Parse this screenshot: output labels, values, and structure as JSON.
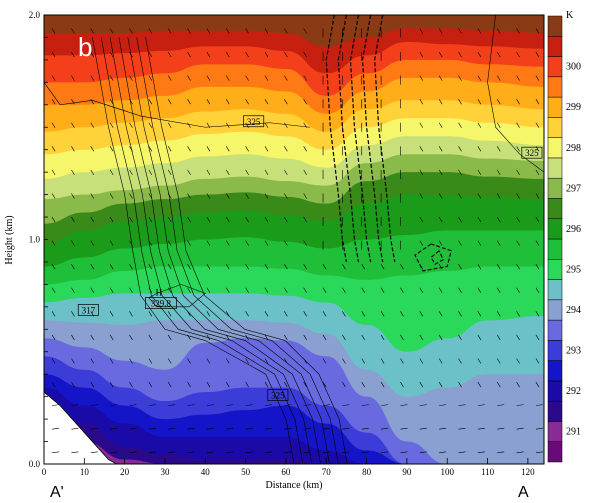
{
  "chart_data": {
    "type": "heatmap",
    "panel_label": "b",
    "xlabel": "Distance (km)",
    "ylabel": "Height (km)",
    "xlim": [
      0,
      124
    ],
    "ylim": [
      0,
      2.0
    ],
    "x_ticks": [
      0,
      10,
      20,
      30,
      40,
      50,
      60,
      70,
      80,
      90,
      100,
      110,
      120
    ],
    "y_ticks": [
      {
        "value": 0.0,
        "label": "0.0"
      },
      {
        "value": 1.0,
        "label": "1.0"
      },
      {
        "value": 2.0,
        "label": "2.0"
      }
    ],
    "section_start_label": "A'",
    "section_end_label": "A",
    "colorbar": {
      "unit": "K",
      "levels": [
        290.5,
        291,
        291.5,
        292,
        292.5,
        293,
        293.5,
        294,
        294.5,
        295,
        295.5,
        296,
        296.5,
        297,
        297.5,
        298,
        298.5,
        299,
        299.5,
        300,
        300.5,
        301
      ],
      "colors": [
        "#6a0a7a",
        "#8a2a96",
        "#2a0a8a",
        "#1a0aa8",
        "#1414c8",
        "#3c3cd8",
        "#6a6ae0",
        "#8aa0d0",
        "#6cc0c8",
        "#2ad85a",
        "#1fbf3a",
        "#1a9c1a",
        "#3a8a1a",
        "#8aba4a",
        "#c8e07a",
        "#f6f66a",
        "#ffd23a",
        "#ffae1a",
        "#ff7a14",
        "#f4401a",
        "#c82010",
        "#8a3a14"
      ],
      "labels": [
        "291",
        "292",
        "293",
        "294",
        "295",
        "296",
        "297",
        "298",
        "299",
        "300"
      ]
    },
    "bands": [
      {
        "theta": 301.0,
        "height_km": [
          1.92,
          1.92,
          1.92,
          1.93,
          1.93,
          1.93,
          1.92,
          1.86,
          1.9,
          1.94,
          1.94,
          1.93,
          1.92
        ]
      },
      {
        "theta": 300.5,
        "height_km": [
          1.82,
          1.82,
          1.83,
          1.84,
          1.86,
          1.86,
          1.84,
          1.74,
          1.82,
          1.88,
          1.87,
          1.86,
          1.85
        ]
      },
      {
        "theta": 300.0,
        "height_km": [
          1.7,
          1.7,
          1.72,
          1.74,
          1.78,
          1.78,
          1.76,
          1.64,
          1.74,
          1.8,
          1.8,
          1.78,
          1.77
        ]
      },
      {
        "theta": 299.5,
        "height_km": [
          1.6,
          1.6,
          1.62,
          1.64,
          1.68,
          1.68,
          1.66,
          1.56,
          1.66,
          1.72,
          1.72,
          1.7,
          1.68
        ]
      },
      {
        "theta": 299.0,
        "height_km": [
          1.48,
          1.5,
          1.52,
          1.54,
          1.57,
          1.58,
          1.56,
          1.48,
          1.58,
          1.62,
          1.62,
          1.6,
          1.58
        ]
      },
      {
        "theta": 298.5,
        "height_km": [
          1.38,
          1.4,
          1.42,
          1.44,
          1.47,
          1.48,
          1.46,
          1.4,
          1.5,
          1.54,
          1.54,
          1.52,
          1.5
        ]
      },
      {
        "theta": 298.0,
        "height_km": [
          1.27,
          1.3,
          1.32,
          1.34,
          1.37,
          1.38,
          1.36,
          1.32,
          1.42,
          1.46,
          1.46,
          1.44,
          1.42
        ]
      },
      {
        "theta": 297.5,
        "height_km": [
          1.18,
          1.2,
          1.22,
          1.24,
          1.27,
          1.28,
          1.26,
          1.24,
          1.34,
          1.38,
          1.38,
          1.36,
          1.35
        ]
      },
      {
        "theta": 297.0,
        "height_km": [
          1.07,
          1.12,
          1.16,
          1.18,
          1.2,
          1.21,
          1.19,
          1.16,
          1.26,
          1.3,
          1.3,
          1.28,
          1.27
        ]
      },
      {
        "theta": 296.5,
        "height_km": [
          0.98,
          1.04,
          1.08,
          1.1,
          1.12,
          1.13,
          1.11,
          1.08,
          1.16,
          1.2,
          1.2,
          1.19,
          1.18
        ]
      },
      {
        "theta": 296.0,
        "height_km": [
          0.88,
          0.92,
          0.96,
          0.98,
          1.0,
          1.01,
          0.99,
          0.96,
          1.0,
          1.02,
          1.04,
          1.04,
          1.04
        ]
      },
      {
        "theta": 295.5,
        "height_km": [
          0.8,
          0.82,
          0.86,
          0.88,
          0.88,
          0.88,
          0.87,
          0.84,
          0.82,
          0.84,
          0.86,
          0.88,
          0.88
        ]
      },
      {
        "theta": 295.0,
        "height_km": [
          0.72,
          0.74,
          0.76,
          0.76,
          0.76,
          0.76,
          0.75,
          0.72,
          0.62,
          0.5,
          0.56,
          0.64,
          0.66
        ]
      },
      {
        "theta": 294.5,
        "height_km": [
          0.64,
          0.63,
          0.62,
          0.64,
          0.64,
          0.64,
          0.63,
          0.58,
          0.42,
          0.3,
          0.34,
          0.4,
          0.4
        ]
      },
      {
        "theta": 294.0,
        "height_km": [
          0.56,
          0.52,
          0.46,
          0.42,
          0.54,
          0.56,
          0.55,
          0.48,
          0.3,
          0.1,
          0.0,
          0.0,
          0.0
        ]
      },
      {
        "theta": 293.5,
        "height_km": [
          0.48,
          0.42,
          0.34,
          0.28,
          0.32,
          0.34,
          0.34,
          0.26,
          0.14,
          0.0,
          0.0,
          0.0,
          0.0
        ]
      },
      {
        "theta": 293.0,
        "height_km": [
          0.4,
          0.34,
          0.26,
          0.2,
          0.22,
          0.24,
          0.26,
          0.18,
          0.06,
          0.0,
          0.0,
          0.0,
          0.0
        ]
      },
      {
        "theta": 292.5,
        "height_km": [
          0.34,
          0.26,
          0.18,
          0.12,
          0.12,
          0.12,
          0.12,
          0.06,
          0.0,
          0.0,
          0.0,
          0.0,
          0.0
        ]
      },
      {
        "theta": 292.0,
        "height_km": [
          0.28,
          0.18,
          0.08,
          0.04,
          0.02,
          0.02,
          0.02,
          0.0,
          0.0,
          0.0,
          0.0,
          0.0,
          0.0
        ]
      },
      {
        "theta": 291.5,
        "height_km": [
          0.22,
          0.1,
          0.02,
          0.0,
          0.0,
          0.0,
          0.0,
          0.0,
          0.0,
          0.0,
          0.0,
          0.0,
          0.0
        ]
      },
      {
        "theta": 291.0,
        "height_km": [
          0.14,
          0.04,
          0.0,
          0.0,
          0.0,
          0.0,
          0.0,
          0.0,
          0.0,
          0.0,
          0.0,
          0.0,
          0.0
        ]
      }
    ],
    "band_x_km": [
      0,
      10,
      20,
      30,
      40,
      50,
      60,
      70,
      80,
      90,
      100,
      110,
      124
    ],
    "terrain_km": {
      "x": [
        0,
        0,
        4,
        10,
        16,
        18
      ],
      "height": [
        0,
        0.32,
        0.26,
        0.14,
        0.02,
        0
      ]
    },
    "contour_labels": [
      {
        "text": "325",
        "x": 52,
        "y": 1.52
      },
      {
        "text": "325",
        "x": 121,
        "y": 1.38
      },
      {
        "text": "317",
        "x": 11,
        "y": 0.68
      },
      {
        "text": "H",
        "x": 28.5,
        "y": 0.76
      },
      {
        "text": "329.8",
        "x": 29,
        "y": 0.71
      },
      {
        "text": "325",
        "x": 58,
        "y": 0.3
      }
    ]
  }
}
